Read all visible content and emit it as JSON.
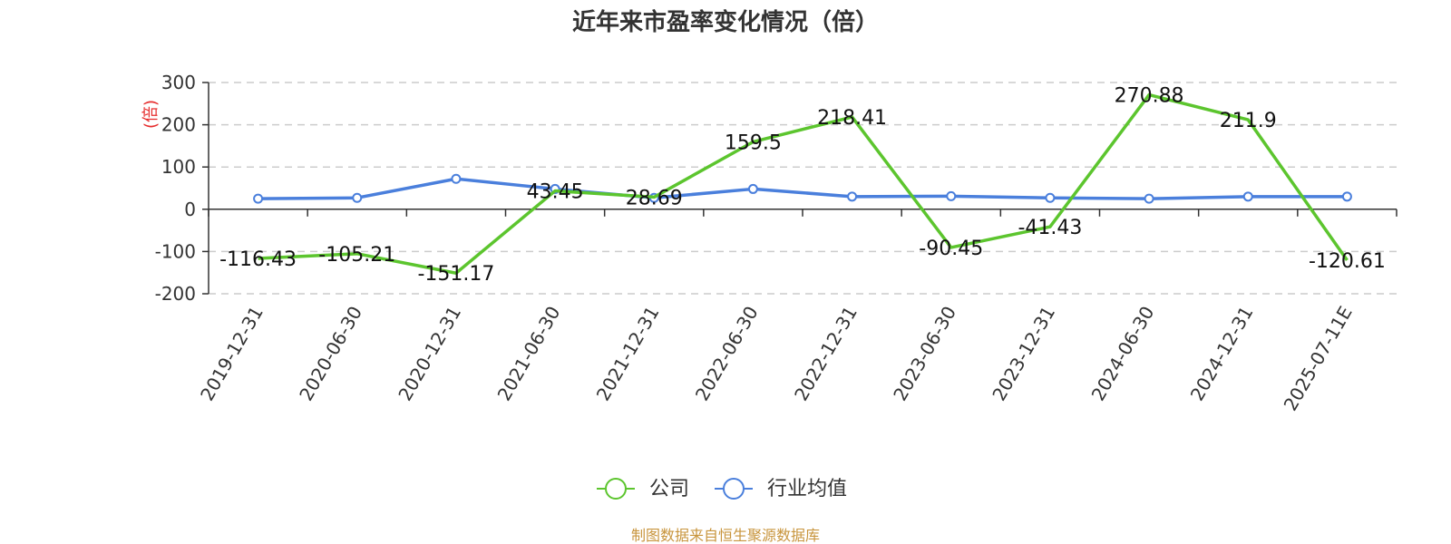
{
  "chart_data": {
    "type": "line",
    "title": "近年来市盈率变化情况（倍）",
    "ylabel": "(倍)",
    "xlabel": "",
    "ylim": [
      -200,
      300
    ],
    "yticks": [
      -200,
      -100,
      0,
      100,
      200,
      300
    ],
    "grid": true,
    "legend_position": "bottom",
    "categories": [
      "2019-12-31",
      "2020-06-30",
      "2020-12-31",
      "2021-06-30",
      "2021-12-31",
      "2022-06-30",
      "2022-12-31",
      "2023-06-30",
      "2023-12-31",
      "2024-06-30",
      "2024-12-31",
      "2025-07-11E"
    ],
    "series": [
      {
        "name": "公司",
        "color": "#5cc52e",
        "values": [
          -116.43,
          -105.21,
          -151.17,
          43.45,
          28.69,
          159.5,
          218.41,
          -90.45,
          -41.43,
          270.88,
          211.9,
          -120.61
        ],
        "labels": [
          "-116.43",
          "-105.21",
          "-151.17",
          "43.45",
          "28.69",
          "159.5",
          "218.41",
          "-90.45",
          "-41.43",
          "270.88",
          "211.9",
          "-120.61"
        ]
      },
      {
        "name": "行业均值",
        "color": "#4a7fdc",
        "values": [
          25,
          27,
          72,
          48,
          27,
          48,
          30,
          31,
          27,
          25,
          30,
          30
        ]
      }
    ],
    "source": "制图数据来自恒生聚源数据库"
  }
}
